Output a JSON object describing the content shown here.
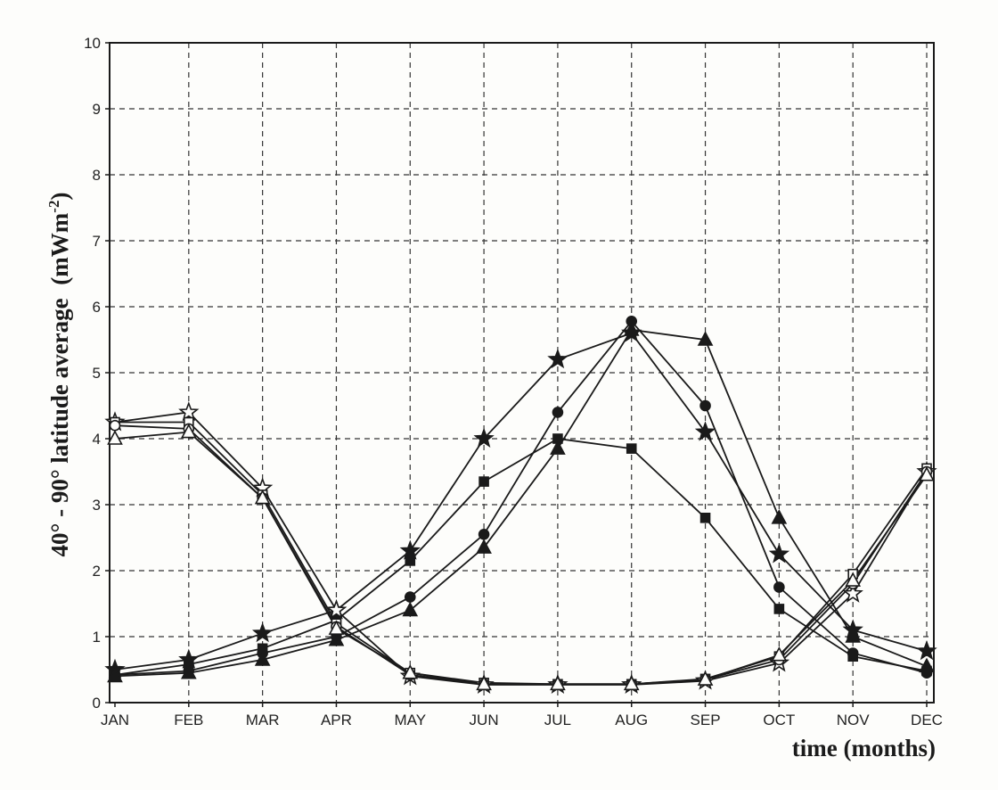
{
  "chart_data": {
    "type": "line",
    "xlabel": "time (months)",
    "ylabel_main": "40° - 90° latitude average",
    "ylabel_unit": "(mWm",
    "ylabel_exp": "-2",
    "ylabel_close": ")",
    "categories": [
      "JAN",
      "FEB",
      "MAR",
      "APR",
      "MAY",
      "JUN",
      "JUL",
      "AUG",
      "SEP",
      "OCT",
      "NOV",
      "DEC"
    ],
    "ylim": [
      0,
      10
    ],
    "yticks": [
      0,
      1,
      2,
      3,
      4,
      5,
      6,
      7,
      8,
      9,
      10
    ],
    "grid": true,
    "series": [
      {
        "marker": "filled-star",
        "values": [
          0.5,
          0.65,
          1.05,
          1.4,
          2.3,
          4.0,
          5.2,
          5.6,
          4.1,
          2.25,
          1.1,
          0.78
        ]
      },
      {
        "marker": "filled-square",
        "values": [
          0.42,
          0.58,
          0.82,
          1.25,
          2.15,
          3.35,
          4.0,
          3.85,
          2.8,
          1.42,
          0.7,
          0.48
        ]
      },
      {
        "marker": "filled-circle",
        "values": [
          0.42,
          0.48,
          0.75,
          1.0,
          1.6,
          2.55,
          4.4,
          5.78,
          4.5,
          1.75,
          0.75,
          0.45
        ]
      },
      {
        "marker": "filled-triangle",
        "values": [
          0.4,
          0.45,
          0.65,
          0.95,
          1.4,
          2.35,
          3.85,
          5.65,
          5.5,
          2.8,
          1.0,
          0.55
        ]
      },
      {
        "marker": "open-star",
        "values": [
          4.25,
          4.4,
          3.25,
          1.4,
          0.4,
          0.27,
          0.27,
          0.27,
          0.33,
          0.6,
          1.65,
          3.5
        ]
      },
      {
        "marker": "open-square",
        "values": [
          4.25,
          4.25,
          3.15,
          1.2,
          0.45,
          0.3,
          0.28,
          0.28,
          0.36,
          0.7,
          1.95,
          3.55
        ]
      },
      {
        "marker": "open-circle",
        "values": [
          4.2,
          4.15,
          3.1,
          1.15,
          0.42,
          0.28,
          0.28,
          0.28,
          0.35,
          0.65,
          1.8,
          3.5
        ]
      },
      {
        "marker": "open-triangle",
        "values": [
          4.0,
          4.1,
          3.1,
          1.12,
          0.45,
          0.28,
          0.28,
          0.28,
          0.35,
          0.72,
          1.85,
          3.45
        ]
      }
    ]
  }
}
